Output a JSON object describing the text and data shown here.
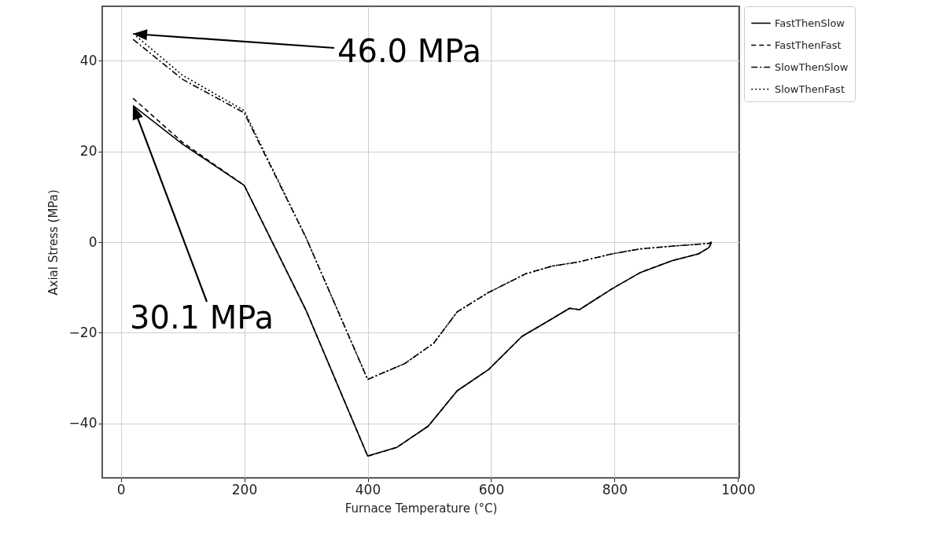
{
  "chart_data": {
    "type": "line",
    "xlabel": "Furnace Temperature (°C)",
    "ylabel": "Axial Stress (MPa)",
    "xlim": [
      -30,
      1002
    ],
    "ylim": [
      -52,
      52
    ],
    "xticks": [
      0,
      200,
      400,
      600,
      800,
      1000
    ],
    "yticks": [
      -40,
      -20,
      0,
      20,
      40
    ],
    "grid": true,
    "legend": "top right",
    "annotations": [
      "46.0 MPa",
      "30.1 MPa"
    ],
    "series": [
      {
        "name": "FastThenSlow",
        "color": "#000000",
        "line_style": "solid",
        "x": [
          20,
          100,
          200,
          300,
          400,
          447,
          498,
          545,
          596,
          650,
          694,
          727,
          743,
          796,
          842,
          893,
          936,
          953,
          957
        ],
        "values": [
          30.1,
          21.6,
          12.5,
          -15,
          -47.2,
          -45.3,
          -40.6,
          -32.8,
          -28.1,
          -20.8,
          -17.3,
          -14.6,
          -14.9,
          -10.3,
          -6.7,
          -4.1,
          -2.6,
          -1.2,
          0
        ]
      },
      {
        "name": "FastThenFast",
        "color": "#000000",
        "line_style": "dashed",
        "x": [
          20,
          100,
          200,
          300,
          400,
          447,
          498,
          545,
          596,
          650,
          694,
          727,
          743,
          796,
          842,
          893,
          936,
          953,
          957
        ],
        "values": [
          31.7,
          22,
          12.5,
          -15,
          -47.2,
          -45.3,
          -40.6,
          -32.8,
          -28.1,
          -20.8,
          -17.3,
          -14.6,
          -14.9,
          -10.3,
          -6.7,
          -4.1,
          -2.6,
          -1.2,
          0
        ]
      },
      {
        "name": "SlowThenSlow",
        "color": "#000000",
        "line_style": "dashdot",
        "x": [
          20,
          100,
          200,
          300,
          400,
          460,
          507,
          545,
          596,
          656,
          699,
          741,
          796,
          842,
          893,
          953,
          957
        ],
        "values": [
          44.7,
          35.9,
          28.5,
          1,
          -30.3,
          -26.8,
          -22.3,
          -15.4,
          -11.1,
          -7,
          -5.3,
          -4.4,
          -2.6,
          -1.5,
          -0.9,
          -0.3,
          0
        ]
      },
      {
        "name": "SlowThenFast",
        "color": "#000000",
        "line_style": "dotted",
        "x": [
          20,
          100,
          200,
          300,
          400,
          460,
          507,
          545,
          596,
          656,
          699,
          741,
          796,
          842,
          893,
          953,
          957
        ],
        "values": [
          46.0,
          36.8,
          29,
          1,
          -30.3,
          -26.8,
          -22.3,
          -15.4,
          -11.1,
          -7,
          -5.3,
          -4.4,
          -2.6,
          -1.5,
          -0.9,
          -0.3,
          0
        ]
      }
    ]
  }
}
